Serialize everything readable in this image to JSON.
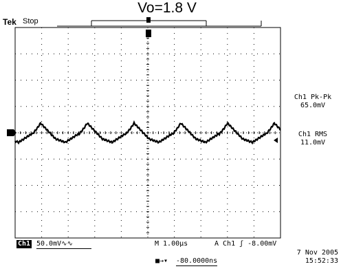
{
  "header": {
    "title": "Vo=1.8 V",
    "brand": "Tek",
    "acq_state": "Stop"
  },
  "measurements": [
    {
      "label": "Ch1 Pk-Pk",
      "value": "65.0mV"
    },
    {
      "label": "Ch1 RMS",
      "value": "11.0mV"
    }
  ],
  "footer": {
    "channel": "Ch1",
    "vdiv": "50.0mV",
    "timebase": "M 1.00µs",
    "trigger": "A  Ch1  ʃ -8.00mV",
    "delay": "-80.0000ns",
    "date": "7 Nov 2005",
    "time": "15:52:33"
  },
  "colors": {
    "trace": "#000000",
    "grid": "#000000",
    "background": "#ffffff"
  }
}
